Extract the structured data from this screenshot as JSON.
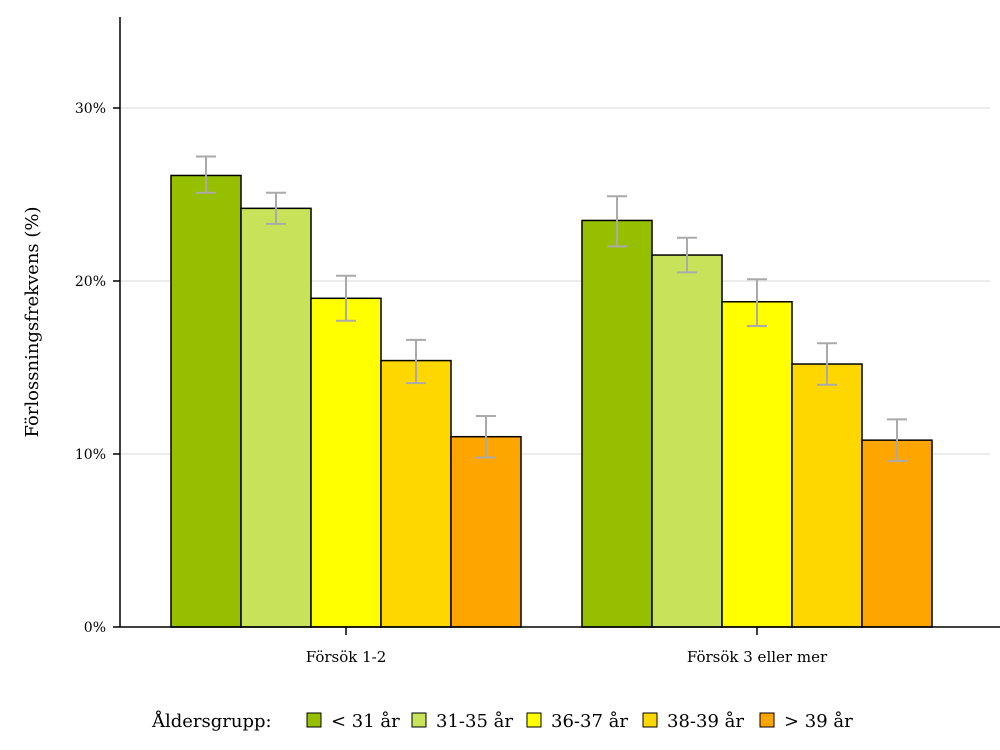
{
  "chart_data": {
    "type": "bar",
    "title": "",
    "xlabel": "",
    "ylabel": "Förlossningsfrekvens (%)",
    "ylim": [
      0,
      35
    ],
    "yticks": [
      0,
      10,
      20,
      30
    ],
    "ytick_labels": [
      "0%",
      "10%",
      "20%",
      "30%"
    ],
    "grid": true,
    "categories": [
      "Försök 1-2",
      "Försök 3 eller mer"
    ],
    "legend_title": "Åldersgrupp:",
    "legend_position": "bottom",
    "series": [
      {
        "name": "< 31 år",
        "color": "#96bf00",
        "values": [
          26.1,
          23.5
        ],
        "error_low": [
          25.1,
          22.0
        ],
        "error_high": [
          27.2,
          24.9
        ]
      },
      {
        "name": "31-35 år",
        "color": "#c8e35a",
        "values": [
          24.2,
          21.5
        ],
        "error_low": [
          23.3,
          20.5
        ],
        "error_high": [
          25.1,
          22.5
        ]
      },
      {
        "name": "36-37 år",
        "color": "#ffff00",
        "values": [
          19.0,
          18.8
        ],
        "error_low": [
          17.7,
          17.4
        ],
        "error_high": [
          20.3,
          20.1
        ]
      },
      {
        "name": "38-39 år",
        "color": "#ffd700",
        "values": [
          15.4,
          15.2
        ],
        "error_low": [
          14.1,
          14.0
        ],
        "error_high": [
          16.6,
          16.4
        ]
      },
      {
        "name": "> 39 år",
        "color": "#ffa500",
        "values": [
          11.0,
          10.8
        ],
        "error_low": [
          9.8,
          9.6
        ],
        "error_high": [
          12.2,
          12.0
        ]
      }
    ]
  }
}
